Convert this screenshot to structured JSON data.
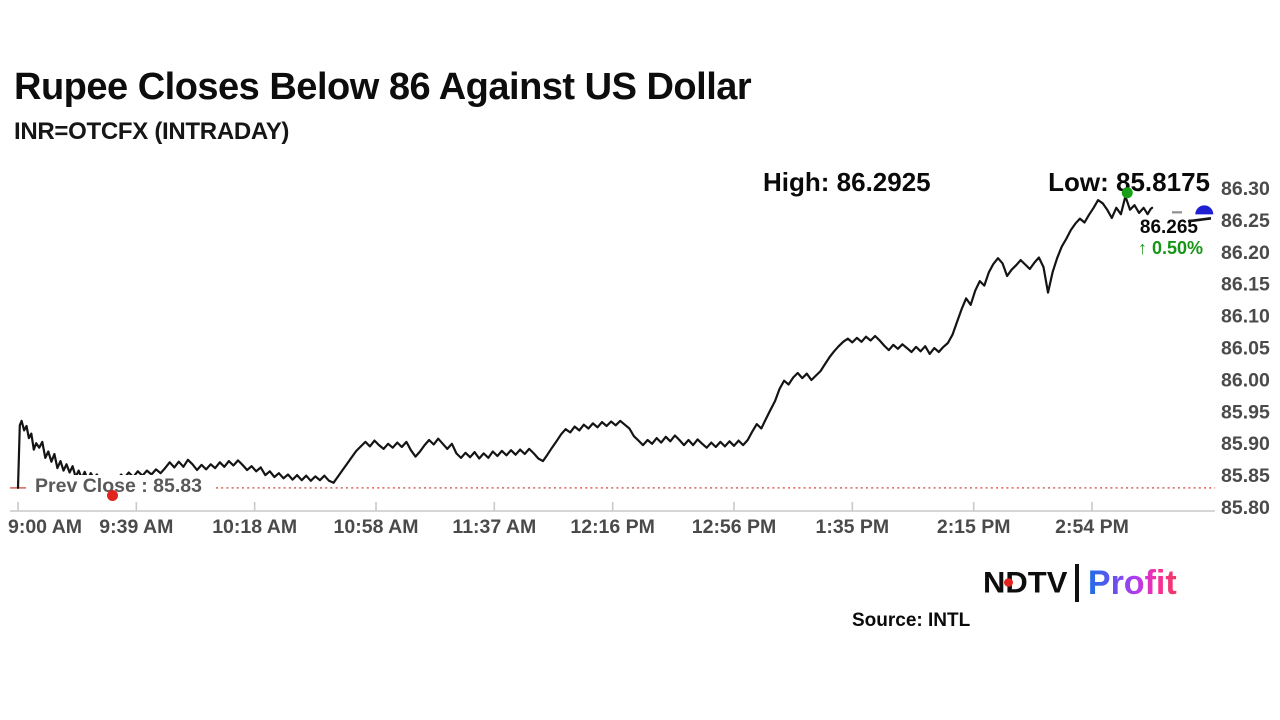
{
  "header": {
    "title": "Rupee Closes Below 86 Against US Dollar",
    "subtitle": "INR=OTCFX (INTRADAY)"
  },
  "annotations": {
    "high_label": "High: 86.2925",
    "low_label": "Low: 85.8175",
    "last_price": "86.265",
    "change": "↑ 0.50%",
    "prev_close_label": "Prev Close : 85.83"
  },
  "footer": {
    "source": "Source: INTL",
    "logo_ndtv": "NDTV",
    "logo_profit": "Profit"
  },
  "colors": {
    "series": "#141414",
    "axis": "#c9c9c9",
    "axis_text": "#4a4a4a",
    "prev_close_line": "#de7a72",
    "low_marker": "#e3231d",
    "high_marker": "#17a017",
    "last_marker": "#1f1fd4",
    "change_up": "#169616",
    "ndtv_dot": "#e3231d",
    "connector_gray": "#8f8f8f"
  },
  "chart_data": {
    "type": "line",
    "title": "Rupee Closes Below 86 Against US Dollar",
    "symbol": "INR=OTCFX",
    "session": "INTRADAY",
    "high": 86.2925,
    "low": 85.8175,
    "last": 86.265,
    "prev_close": 85.83,
    "change_pct": 0.5,
    "grid": false,
    "legend": false,
    "ylim": [
      85.8,
      86.3
    ],
    "y_ticks": [
      "86.30",
      "86.25",
      "86.20",
      "86.15",
      "86.10",
      "86.05",
      "86.00",
      "85.95",
      "85.90",
      "85.85",
      "85.80"
    ],
    "x_ticks": [
      "9:00 AM",
      "9:39 AM",
      "10:18 AM",
      "10:58 AM",
      "11:37 AM",
      "12:16 PM",
      "12:56 PM",
      "1:35 PM",
      "2:15 PM",
      "2:54 PM"
    ],
    "x_tick_minutes": [
      0,
      39,
      78,
      118,
      157,
      196,
      236,
      275,
      315,
      354
    ],
    "markers": {
      "high": {
        "t": 365.6,
        "p": 86.2925
      },
      "low": {
        "t": 31,
        "p": 85.8175
      },
      "last": {
        "t": 391,
        "p": 86.265
      }
    },
    "series": {
      "name": "INR=OTCFX",
      "points": [
        [
          0,
          85.83
        ],
        [
          0.6,
          85.928
        ],
        [
          1.2,
          85.935
        ],
        [
          2,
          85.92
        ],
        [
          2.8,
          85.927
        ],
        [
          3.6,
          85.908
        ],
        [
          4.4,
          85.915
        ],
        [
          5.2,
          85.89
        ],
        [
          6,
          85.9
        ],
        [
          7,
          85.893
        ],
        [
          8,
          85.902
        ],
        [
          9,
          85.877
        ],
        [
          10,
          85.887
        ],
        [
          11,
          85.871
        ],
        [
          12,
          85.883
        ],
        [
          13,
          85.861
        ],
        [
          14,
          85.872
        ],
        [
          15,
          85.857
        ],
        [
          16,
          85.867
        ],
        [
          17,
          85.854
        ],
        [
          18,
          85.864
        ],
        [
          19,
          85.847
        ],
        [
          20,
          85.857
        ],
        [
          21,
          85.845
        ],
        [
          22,
          85.855
        ],
        [
          23,
          85.843
        ],
        [
          24,
          85.853
        ],
        [
          25,
          85.845
        ],
        [
          26,
          85.851
        ],
        [
          27,
          85.842
        ],
        [
          28,
          85.848
        ],
        [
          29,
          85.838
        ],
        [
          30,
          85.828
        ],
        [
          31,
          85.8175
        ],
        [
          32,
          85.832
        ],
        [
          33,
          85.845
        ],
        [
          34,
          85.851
        ],
        [
          35,
          85.845
        ],
        [
          36.5,
          85.854
        ],
        [
          38,
          85.847
        ],
        [
          39.5,
          85.856
        ],
        [
          41,
          85.849
        ],
        [
          42.5,
          85.857
        ],
        [
          44,
          85.851
        ],
        [
          45.5,
          85.859
        ],
        [
          47,
          85.853
        ],
        [
          48.5,
          85.861
        ],
        [
          50,
          85.87
        ],
        [
          51.5,
          85.862
        ],
        [
          53,
          85.871
        ],
        [
          54.5,
          85.863
        ],
        [
          56,
          85.874
        ],
        [
          57.5,
          85.867
        ],
        [
          59,
          85.858
        ],
        [
          60.5,
          85.866
        ],
        [
          62,
          85.859
        ],
        [
          63.5,
          85.867
        ],
        [
          65,
          85.861
        ],
        [
          66.5,
          85.87
        ],
        [
          68,
          85.863
        ],
        [
          69.5,
          85.872
        ],
        [
          71,
          85.865
        ],
        [
          72.5,
          85.873
        ],
        [
          74,
          85.866
        ],
        [
          75.5,
          85.858
        ],
        [
          77,
          85.864
        ],
        [
          78.5,
          85.856
        ],
        [
          80,
          85.862
        ],
        [
          81.5,
          85.85
        ],
        [
          83,
          85.856
        ],
        [
          84.5,
          85.847
        ],
        [
          86,
          85.853
        ],
        [
          87.5,
          85.845
        ],
        [
          89,
          85.851
        ],
        [
          90.5,
          85.843
        ],
        [
          92,
          85.85
        ],
        [
          93.5,
          85.842
        ],
        [
          95,
          85.849
        ],
        [
          96.5,
          85.841
        ],
        [
          98,
          85.848
        ],
        [
          99.5,
          85.842
        ],
        [
          101,
          85.849
        ],
        [
          102.5,
          85.841
        ],
        [
          104,
          85.838
        ],
        [
          105.5,
          85.848
        ],
        [
          107,
          85.858
        ],
        [
          108.5,
          85.868
        ],
        [
          110,
          85.878
        ],
        [
          111.5,
          85.888
        ],
        [
          113,
          85.895
        ],
        [
          114.5,
          85.902
        ],
        [
          116,
          85.895
        ],
        [
          117.5,
          85.904
        ],
        [
          119,
          85.897
        ],
        [
          120.5,
          85.891
        ],
        [
          122,
          85.899
        ],
        [
          123.5,
          85.893
        ],
        [
          125,
          85.901
        ],
        [
          126.5,
          85.894
        ],
        [
          128,
          85.902
        ],
        [
          129.5,
          85.889
        ],
        [
          131,
          85.879
        ],
        [
          132.5,
          85.887
        ],
        [
          134,
          85.897
        ],
        [
          135.5,
          85.905
        ],
        [
          137,
          85.898
        ],
        [
          138.5,
          85.907
        ],
        [
          140,
          85.899
        ],
        [
          141.5,
          85.891
        ],
        [
          143,
          85.899
        ],
        [
          144.5,
          85.884
        ],
        [
          146,
          85.877
        ],
        [
          147.5,
          85.885
        ],
        [
          149,
          85.878
        ],
        [
          150.5,
          85.886
        ],
        [
          152,
          85.876
        ],
        [
          153.5,
          85.884
        ],
        [
          155,
          85.877
        ],
        [
          156.5,
          85.887
        ],
        [
          158,
          85.88
        ],
        [
          159.5,
          85.888
        ],
        [
          161,
          85.881
        ],
        [
          162.5,
          85.889
        ],
        [
          164,
          85.882
        ],
        [
          165.5,
          85.89
        ],
        [
          167,
          85.883
        ],
        [
          168.5,
          85.891
        ],
        [
          170,
          85.884
        ],
        [
          171.5,
          85.876
        ],
        [
          173,
          85.872
        ],
        [
          174.5,
          85.882
        ],
        [
          176,
          85.893
        ],
        [
          177.5,
          85.903
        ],
        [
          179,
          85.914
        ],
        [
          180.5,
          85.922
        ],
        [
          182,
          85.917
        ],
        [
          183.5,
          85.926
        ],
        [
          185,
          85.92
        ],
        [
          186.5,
          85.929
        ],
        [
          188,
          85.923
        ],
        [
          189.5,
          85.931
        ],
        [
          191,
          85.925
        ],
        [
          192.5,
          85.933
        ],
        [
          194,
          85.927
        ],
        [
          195.5,
          85.934
        ],
        [
          197,
          85.928
        ],
        [
          198.5,
          85.935
        ],
        [
          200,
          85.929
        ],
        [
          201.5,
          85.923
        ],
        [
          203,
          85.911
        ],
        [
          204.5,
          85.904
        ],
        [
          206,
          85.897
        ],
        [
          207.5,
          85.905
        ],
        [
          209,
          85.899
        ],
        [
          210.5,
          85.908
        ],
        [
          212,
          85.901
        ],
        [
          213.5,
          85.91
        ],
        [
          215,
          85.903
        ],
        [
          216.5,
          85.912
        ],
        [
          218,
          85.905
        ],
        [
          219.5,
          85.897
        ],
        [
          221,
          85.905
        ],
        [
          222.5,
          85.897
        ],
        [
          224,
          85.906
        ],
        [
          225.5,
          85.899
        ],
        [
          227,
          85.893
        ],
        [
          228.5,
          85.901
        ],
        [
          230,
          85.894
        ],
        [
          231.5,
          85.902
        ],
        [
          233,
          85.895
        ],
        [
          234.5,
          85.903
        ],
        [
          236,
          85.896
        ],
        [
          237.5,
          85.904
        ],
        [
          239,
          85.897
        ],
        [
          240.5,
          85.905
        ],
        [
          242,
          85.918
        ],
        [
          243.5,
          85.93
        ],
        [
          245,
          85.923
        ],
        [
          246.5,
          85.938
        ],
        [
          248,
          85.952
        ],
        [
          249.5,
          85.966
        ],
        [
          251,
          85.985
        ],
        [
          252.5,
          85.998
        ],
        [
          254,
          85.992
        ],
        [
          255.5,
          86.003
        ],
        [
          257,
          86.01
        ],
        [
          258.5,
          86.002
        ],
        [
          260,
          86.009
        ],
        [
          261.5,
          85.999
        ],
        [
          263,
          86.006
        ],
        [
          264.5,
          86.013
        ],
        [
          266,
          86.024
        ],
        [
          267.5,
          86.035
        ],
        [
          269,
          86.044
        ],
        [
          270.5,
          86.052
        ],
        [
          272,
          86.059
        ],
        [
          273.5,
          86.064
        ],
        [
          275,
          86.058
        ],
        [
          276.5,
          86.065
        ],
        [
          278,
          86.059
        ],
        [
          279.5,
          86.067
        ],
        [
          281,
          86.061
        ],
        [
          282.5,
          86.068
        ],
        [
          284,
          86.061
        ],
        [
          285.5,
          86.053
        ],
        [
          287,
          86.046
        ],
        [
          288.5,
          86.054
        ],
        [
          290,
          86.048
        ],
        [
          291.5,
          86.055
        ],
        [
          293,
          86.049
        ],
        [
          294.5,
          86.043
        ],
        [
          296,
          86.051
        ],
        [
          297.5,
          86.044
        ],
        [
          299,
          86.052
        ],
        [
          300.5,
          86.04
        ],
        [
          302,
          86.049
        ],
        [
          303.5,
          86.043
        ],
        [
          305,
          86.051
        ],
        [
          306.5,
          86.057
        ],
        [
          308,
          86.07
        ],
        [
          309.5,
          86.09
        ],
        [
          311,
          86.11
        ],
        [
          312.5,
          86.127
        ],
        [
          314,
          86.117
        ],
        [
          315.5,
          86.139
        ],
        [
          317,
          86.154
        ],
        [
          318.5,
          86.147
        ],
        [
          320,
          86.168
        ],
        [
          321.5,
          86.181
        ],
        [
          323,
          86.19
        ],
        [
          324.5,
          86.182
        ],
        [
          326,
          86.162
        ],
        [
          327.5,
          86.172
        ],
        [
          329,
          86.179
        ],
        [
          330.5,
          86.187
        ],
        [
          332,
          86.18
        ],
        [
          333.5,
          86.173
        ],
        [
          335,
          86.183
        ],
        [
          336.5,
          86.191
        ],
        [
          338,
          86.176
        ],
        [
          339.5,
          86.136
        ],
        [
          341,
          86.168
        ],
        [
          342.5,
          86.19
        ],
        [
          344,
          86.208
        ],
        [
          345.5,
          86.22
        ],
        [
          347,
          86.234
        ],
        [
          348.5,
          86.244
        ],
        [
          350,
          86.252
        ],
        [
          351.5,
          86.246
        ],
        [
          353,
          86.258
        ],
        [
          354.5,
          86.269
        ],
        [
          356,
          86.281
        ],
        [
          357.5,
          86.276
        ],
        [
          359,
          86.266
        ],
        [
          360.5,
          86.253
        ],
        [
          362,
          86.269
        ],
        [
          363.5,
          86.259
        ],
        [
          365,
          86.287
        ],
        [
          366.5,
          86.266
        ],
        [
          368,
          86.273
        ],
        [
          369.5,
          86.261
        ],
        [
          371,
          86.269
        ],
        [
          372.3,
          86.259
        ],
        [
          373.3,
          86.267
        ],
        [
          373.8,
          86.269
        ]
      ]
    }
  }
}
